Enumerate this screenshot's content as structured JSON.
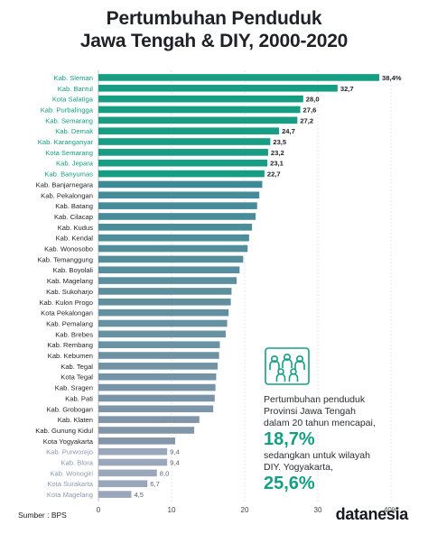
{
  "title_line1": "Pertumbuhan Penduduk",
  "title_line2": "Jawa Tengah & DIY, 2000-2020",
  "source": "Sumber : BPS",
  "logo": "datanesia",
  "callout": {
    "line1": "Pertumbuhan penduduk",
    "line2": "Provinsi Jawa Tengah",
    "line3": "dalam 20 tahun mencapai,",
    "value1": "18,7%",
    "line4": "sedangkan untuk wilayah",
    "line5": "DIY. Yogyakarta,",
    "value2": "25,6%",
    "icon": "people-group-icon"
  },
  "colors": {
    "top10": "#169d83",
    "middle_top": "#3f8a96",
    "middle_bottom": "#8696aa",
    "bottom": "#9aa7ba",
    "bottom_label": "#8a9aae",
    "top_label": "#169d83"
  },
  "chart_data": {
    "type": "bar",
    "orientation": "horizontal",
    "xlim": [
      0,
      40
    ],
    "xticks": [
      "0",
      "10",
      "20",
      "30",
      "40%"
    ],
    "grid": true,
    "categories": [
      "Kab. Sleman",
      "Kab. Bantul",
      "Kota Salatiga",
      "Kab. Purbalingga",
      "Kab. Semarang",
      "Kab. Demak",
      "Kab. Karanganyar",
      "Kota Semarang",
      "Kab. Jepara",
      "Kab. Banyumas",
      "Kab. Banjarnegara",
      "Kab. Pekalongan",
      "Kab. Batang",
      "Kab. Cilacap",
      "Kab. Kudus",
      "Kab. Kendal",
      "Kab. Wonosobo",
      "Kab. Temanggung",
      "Kab. Boyolali",
      "Kab. Magelang",
      "Kab. Sukoharjo",
      "Kab. Kulon Progo",
      "Kota Pekalongan",
      "Kab. Pemalang",
      "Kab. Brebes",
      "Kab. Rembang",
      "Kab. Kebumen",
      "Kab. Tegal",
      "Kota Tegal",
      "Kab. Sragen",
      "Kab. Pati",
      "Kab. Grobogan",
      "Kab. Klaten",
      "Kab. Gunung Kidul",
      "Kota Yogyakarta",
      "Kab. Purworejo",
      "Kab. Blora",
      "Kab. Wonogiri",
      "Kota Surakarta",
      "Kota Magelang"
    ],
    "values": [
      38.4,
      32.7,
      28.0,
      27.6,
      27.2,
      24.7,
      23.5,
      23.2,
      23.1,
      22.7,
      22.4,
      22.0,
      21.7,
      21.5,
      21.0,
      20.6,
      20.4,
      19.8,
      19.3,
      18.9,
      18.2,
      18.1,
      17.8,
      17.6,
      17.4,
      16.6,
      16.5,
      16.3,
      16.1,
      16.0,
      15.9,
      15.7,
      13.8,
      13.1,
      10.5,
      9.4,
      9.4,
      8.0,
      6.7,
      4.5
    ],
    "data_labels": [
      "38,4%",
      "32,7",
      "28,0",
      "27,6",
      "27,2",
      "24,7",
      "23,5",
      "23,2",
      "23,1",
      "22,7",
      "",
      "",
      "",
      "",
      "",
      "",
      "",
      "",
      "",
      "",
      "",
      "",
      "",
      "",
      "",
      "",
      "",
      "",
      "",
      "",
      "",
      "",
      "",
      "",
      "",
      "9,4",
      "9,4",
      "8,0",
      "6,7",
      "4,5"
    ]
  }
}
